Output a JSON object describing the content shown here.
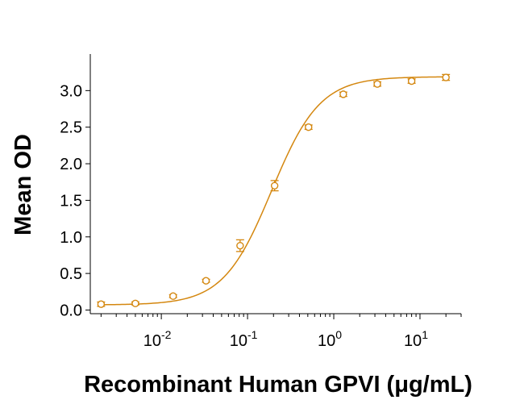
{
  "chart_data": {
    "type": "scatter",
    "title": "",
    "xlabel": "Recombinant Human GPVI (μg/mL)",
    "ylabel": "Mean OD",
    "x_scale": "log",
    "xlim": [
      0.0015,
      30
    ],
    "ylim": [
      -0.05,
      3.5
    ],
    "x_ticks": [
      {
        "value": 0.01,
        "base": "10",
        "exp": "-2"
      },
      {
        "value": 0.1,
        "base": "10",
        "exp": "-1"
      },
      {
        "value": 1,
        "base": "10",
        "exp": "0"
      },
      {
        "value": 10,
        "base": "10",
        "exp": "1"
      }
    ],
    "y_ticks": [
      {
        "value": 0.0,
        "label": "0.0"
      },
      {
        "value": 0.5,
        "label": "0.5"
      },
      {
        "value": 1.0,
        "label": "1.0"
      },
      {
        "value": 1.5,
        "label": "1.5"
      },
      {
        "value": 2.0,
        "label": "2.0"
      },
      {
        "value": 2.5,
        "label": "2.5"
      },
      {
        "value": 3.0,
        "label": "3.0"
      }
    ],
    "color": "#D4870F",
    "grid": false,
    "points": [
      {
        "x": 0.002,
        "y": 0.08,
        "err": 0.03
      },
      {
        "x": 0.005,
        "y": 0.09,
        "err": 0.02
      },
      {
        "x": 0.0137,
        "y": 0.19,
        "err": 0.02
      },
      {
        "x": 0.033,
        "y": 0.4,
        "err": 0.02
      },
      {
        "x": 0.082,
        "y": 0.88,
        "err": 0.08
      },
      {
        "x": 0.206,
        "y": 1.7,
        "err": 0.07
      },
      {
        "x": 0.51,
        "y": 2.5,
        "err": 0.03
      },
      {
        "x": 1.29,
        "y": 2.95,
        "err": 0.03
      },
      {
        "x": 3.2,
        "y": 3.09,
        "err": 0.03
      },
      {
        "x": 8.0,
        "y": 3.13,
        "err": 0.03
      },
      {
        "x": 20.0,
        "y": 3.18,
        "err": 0.04
      }
    ],
    "fit": {
      "bottom": 0.07,
      "top": 3.19,
      "ec50": 0.19,
      "hill": 1.55
    }
  }
}
